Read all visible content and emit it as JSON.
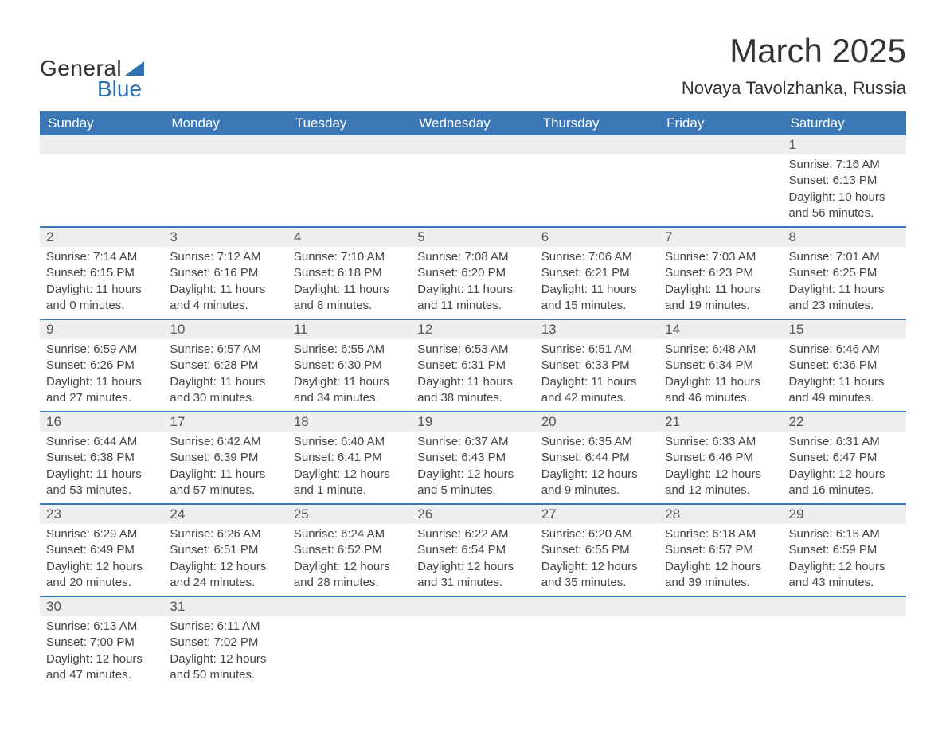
{
  "logo": {
    "text1": "General",
    "text2": "Blue"
  },
  "title": "March 2025",
  "location": "Novaya Tavolzhanka, Russia",
  "colors": {
    "header_bg": "#3b76b5",
    "header_text": "#ffffff",
    "daynum_bg": "#eeeeee",
    "border": "#3b76b5",
    "body_text": "#444444",
    "accent": "#2f6fae"
  },
  "weekdays": [
    "Sunday",
    "Monday",
    "Tuesday",
    "Wednesday",
    "Thursday",
    "Friday",
    "Saturday"
  ],
  "weeks": [
    [
      {
        "day": "",
        "lines": [
          "",
          "",
          "",
          ""
        ]
      },
      {
        "day": "",
        "lines": [
          "",
          "",
          "",
          ""
        ]
      },
      {
        "day": "",
        "lines": [
          "",
          "",
          "",
          ""
        ]
      },
      {
        "day": "",
        "lines": [
          "",
          "",
          "",
          ""
        ]
      },
      {
        "day": "",
        "lines": [
          "",
          "",
          "",
          ""
        ]
      },
      {
        "day": "",
        "lines": [
          "",
          "",
          "",
          ""
        ]
      },
      {
        "day": "1",
        "lines": [
          "Sunrise: 7:16 AM",
          "Sunset: 6:13 PM",
          "Daylight: 10 hours",
          "and 56 minutes."
        ]
      }
    ],
    [
      {
        "day": "2",
        "lines": [
          "Sunrise: 7:14 AM",
          "Sunset: 6:15 PM",
          "Daylight: 11 hours",
          "and 0 minutes."
        ]
      },
      {
        "day": "3",
        "lines": [
          "Sunrise: 7:12 AM",
          "Sunset: 6:16 PM",
          "Daylight: 11 hours",
          "and 4 minutes."
        ]
      },
      {
        "day": "4",
        "lines": [
          "Sunrise: 7:10 AM",
          "Sunset: 6:18 PM",
          "Daylight: 11 hours",
          "and 8 minutes."
        ]
      },
      {
        "day": "5",
        "lines": [
          "Sunrise: 7:08 AM",
          "Sunset: 6:20 PM",
          "Daylight: 11 hours",
          "and 11 minutes."
        ]
      },
      {
        "day": "6",
        "lines": [
          "Sunrise: 7:06 AM",
          "Sunset: 6:21 PM",
          "Daylight: 11 hours",
          "and 15 minutes."
        ]
      },
      {
        "day": "7",
        "lines": [
          "Sunrise: 7:03 AM",
          "Sunset: 6:23 PM",
          "Daylight: 11 hours",
          "and 19 minutes."
        ]
      },
      {
        "day": "8",
        "lines": [
          "Sunrise: 7:01 AM",
          "Sunset: 6:25 PM",
          "Daylight: 11 hours",
          "and 23 minutes."
        ]
      }
    ],
    [
      {
        "day": "9",
        "lines": [
          "Sunrise: 6:59 AM",
          "Sunset: 6:26 PM",
          "Daylight: 11 hours",
          "and 27 minutes."
        ]
      },
      {
        "day": "10",
        "lines": [
          "Sunrise: 6:57 AM",
          "Sunset: 6:28 PM",
          "Daylight: 11 hours",
          "and 30 minutes."
        ]
      },
      {
        "day": "11",
        "lines": [
          "Sunrise: 6:55 AM",
          "Sunset: 6:30 PM",
          "Daylight: 11 hours",
          "and 34 minutes."
        ]
      },
      {
        "day": "12",
        "lines": [
          "Sunrise: 6:53 AM",
          "Sunset: 6:31 PM",
          "Daylight: 11 hours",
          "and 38 minutes."
        ]
      },
      {
        "day": "13",
        "lines": [
          "Sunrise: 6:51 AM",
          "Sunset: 6:33 PM",
          "Daylight: 11 hours",
          "and 42 minutes."
        ]
      },
      {
        "day": "14",
        "lines": [
          "Sunrise: 6:48 AM",
          "Sunset: 6:34 PM",
          "Daylight: 11 hours",
          "and 46 minutes."
        ]
      },
      {
        "day": "15",
        "lines": [
          "Sunrise: 6:46 AM",
          "Sunset: 6:36 PM",
          "Daylight: 11 hours",
          "and 49 minutes."
        ]
      }
    ],
    [
      {
        "day": "16",
        "lines": [
          "Sunrise: 6:44 AM",
          "Sunset: 6:38 PM",
          "Daylight: 11 hours",
          "and 53 minutes."
        ]
      },
      {
        "day": "17",
        "lines": [
          "Sunrise: 6:42 AM",
          "Sunset: 6:39 PM",
          "Daylight: 11 hours",
          "and 57 minutes."
        ]
      },
      {
        "day": "18",
        "lines": [
          "Sunrise: 6:40 AM",
          "Sunset: 6:41 PM",
          "Daylight: 12 hours",
          "and 1 minute."
        ]
      },
      {
        "day": "19",
        "lines": [
          "Sunrise: 6:37 AM",
          "Sunset: 6:43 PM",
          "Daylight: 12 hours",
          "and 5 minutes."
        ]
      },
      {
        "day": "20",
        "lines": [
          "Sunrise: 6:35 AM",
          "Sunset: 6:44 PM",
          "Daylight: 12 hours",
          "and 9 minutes."
        ]
      },
      {
        "day": "21",
        "lines": [
          "Sunrise: 6:33 AM",
          "Sunset: 6:46 PM",
          "Daylight: 12 hours",
          "and 12 minutes."
        ]
      },
      {
        "day": "22",
        "lines": [
          "Sunrise: 6:31 AM",
          "Sunset: 6:47 PM",
          "Daylight: 12 hours",
          "and 16 minutes."
        ]
      }
    ],
    [
      {
        "day": "23",
        "lines": [
          "Sunrise: 6:29 AM",
          "Sunset: 6:49 PM",
          "Daylight: 12 hours",
          "and 20 minutes."
        ]
      },
      {
        "day": "24",
        "lines": [
          "Sunrise: 6:26 AM",
          "Sunset: 6:51 PM",
          "Daylight: 12 hours",
          "and 24 minutes."
        ]
      },
      {
        "day": "25",
        "lines": [
          "Sunrise: 6:24 AM",
          "Sunset: 6:52 PM",
          "Daylight: 12 hours",
          "and 28 minutes."
        ]
      },
      {
        "day": "26",
        "lines": [
          "Sunrise: 6:22 AM",
          "Sunset: 6:54 PM",
          "Daylight: 12 hours",
          "and 31 minutes."
        ]
      },
      {
        "day": "27",
        "lines": [
          "Sunrise: 6:20 AM",
          "Sunset: 6:55 PM",
          "Daylight: 12 hours",
          "and 35 minutes."
        ]
      },
      {
        "day": "28",
        "lines": [
          "Sunrise: 6:18 AM",
          "Sunset: 6:57 PM",
          "Daylight: 12 hours",
          "and 39 minutes."
        ]
      },
      {
        "day": "29",
        "lines": [
          "Sunrise: 6:15 AM",
          "Sunset: 6:59 PM",
          "Daylight: 12 hours",
          "and 43 minutes."
        ]
      }
    ],
    [
      {
        "day": "30",
        "lines": [
          "Sunrise: 6:13 AM",
          "Sunset: 7:00 PM",
          "Daylight: 12 hours",
          "and 47 minutes."
        ]
      },
      {
        "day": "31",
        "lines": [
          "Sunrise: 6:11 AM",
          "Sunset: 7:02 PM",
          "Daylight: 12 hours",
          "and 50 minutes."
        ]
      },
      {
        "day": "",
        "lines": [
          "",
          "",
          "",
          ""
        ]
      },
      {
        "day": "",
        "lines": [
          "",
          "",
          "",
          ""
        ]
      },
      {
        "day": "",
        "lines": [
          "",
          "",
          "",
          ""
        ]
      },
      {
        "day": "",
        "lines": [
          "",
          "",
          "",
          ""
        ]
      },
      {
        "day": "",
        "lines": [
          "",
          "",
          "",
          ""
        ]
      }
    ]
  ]
}
